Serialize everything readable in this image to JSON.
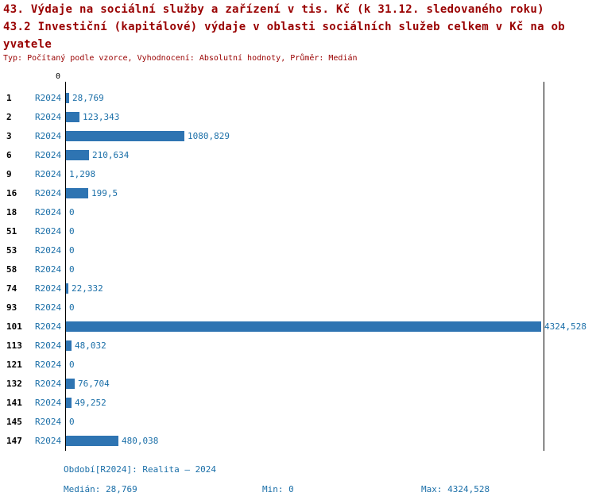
{
  "title": {
    "line1": "43. Výdaje na sociální služby a zařízení v tis. Kč (k 31.12. sledovaného roku)",
    "line2": "43.2 Investiční (kapitálové) výdaje v oblasti sociálních služeb celkem v Kč na ob",
    "line3": "yvatele",
    "meta": "Typ: Počítaný podle vzorce, Vyhodnocení: Absolutní hodnoty, Průměr: Medián"
  },
  "chart_data": {
    "type": "bar",
    "orientation": "horizontal",
    "series_label": "R2024",
    "axis_zero_label": "0",
    "categories": [
      "1",
      "2",
      "3",
      "6",
      "9",
      "16",
      "18",
      "51",
      "53",
      "58",
      "74",
      "93",
      "101",
      "113",
      "121",
      "132",
      "141",
      "145",
      "147"
    ],
    "values": [
      28.769,
      123.343,
      1080.829,
      210.634,
      1.298,
      199.5,
      0,
      0,
      0,
      0,
      22.332,
      0,
      4324.528,
      48.032,
      0,
      76.704,
      49.252,
      0,
      480.038
    ],
    "value_labels": [
      "28,769",
      "123,343",
      "1080,829",
      "210,634",
      "1,298",
      "199,5",
      "0",
      "0",
      "0",
      "0",
      "22,332",
      "0",
      "4324,528",
      "48,032",
      "0",
      "76,704",
      "49,252",
      "0",
      "480,038"
    ],
    "xlim": [
      0,
      4324.528
    ],
    "bar_color": "#2e74b2",
    "title": "43.2 Investiční (kapitálové) výdaje v oblasti sociálních služeb celkem v Kč na obyvatele",
    "xlabel": "",
    "ylabel": "",
    "legend": "none",
    "grid": false
  },
  "footer": {
    "period": "Období[R2024]: Realita – 2024",
    "median": "Medián: 28,769",
    "min": "Min: 0",
    "max": "Max: 4324,528"
  },
  "colors": {
    "title_text": "#990000",
    "blue_text": "#1b6fa8",
    "bar": "#2e74b2",
    "axis": "#000000"
  }
}
